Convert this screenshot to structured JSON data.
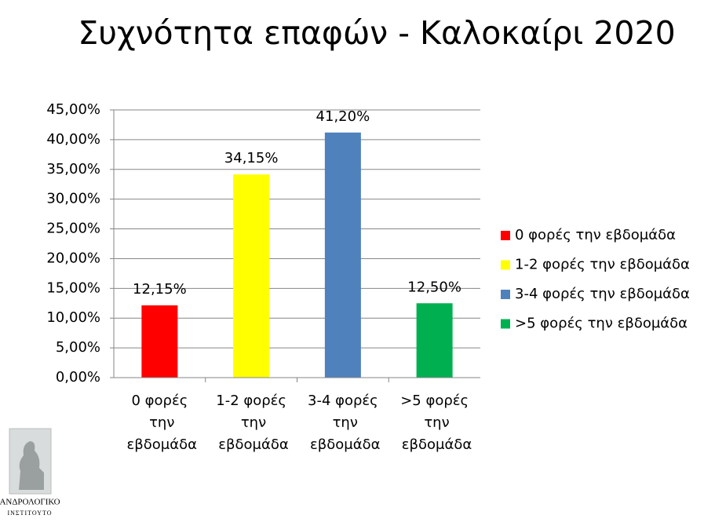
{
  "chart_data": {
    "type": "bar",
    "title": "Συχνότητα επαφών - Καλοκαίρι 2020",
    "categories": [
      "0 φορές την εβδομάδα",
      "1-2 φορές την εβδομάδα",
      "3-4 φορές την εβδομάδα",
      ">5 φορές την εβδομάδα"
    ],
    "values": [
      12.15,
      34.15,
      41.2,
      12.5
    ],
    "value_labels": [
      "12,15%",
      "34,15%",
      "41,20%",
      "12,50%"
    ],
    "colors": [
      "#ff0000",
      "#ffff00",
      "#4f81bd",
      "#00b050"
    ],
    "ylim": [
      0,
      45
    ],
    "yticks": [
      {
        "value": 0,
        "label": "0,00%"
      },
      {
        "value": 5,
        "label": "5,00%"
      },
      {
        "value": 10,
        "label": "10,00%"
      },
      {
        "value": 15,
        "label": "15,00%"
      },
      {
        "value": 20,
        "label": "20,00%"
      },
      {
        "value": 25,
        "label": "25,00%"
      },
      {
        "value": 30,
        "label": "30,00%"
      },
      {
        "value": 35,
        "label": "35,00%"
      },
      {
        "value": 40,
        "label": "40,00%"
      },
      {
        "value": 45,
        "label": "45,00%"
      }
    ],
    "grid": true,
    "legend": "right"
  },
  "logo": {
    "line1": "ΑΝΔΡΟΛΟΓΙΚΟ",
    "line2": "ΙΝΣΤΙΤΟΥΤΟ"
  }
}
